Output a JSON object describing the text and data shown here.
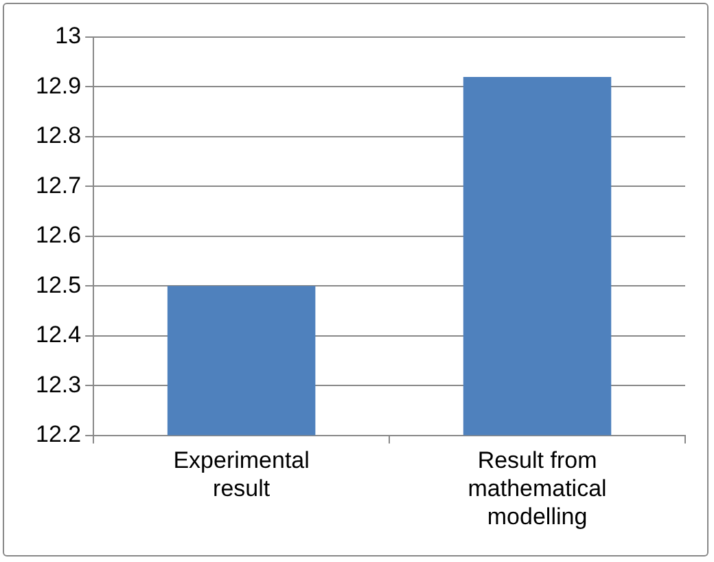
{
  "chart_data": {
    "type": "bar",
    "categories": [
      "Experimental result",
      "Result from mathematical modelling"
    ],
    "values": [
      12.5,
      12.92
    ],
    "color": "#4f81bd",
    "ylim": [
      12.2,
      13
    ],
    "yticks": [
      12.2,
      12.3,
      12.4,
      12.5,
      12.6,
      12.7,
      12.8,
      12.9,
      13
    ],
    "grid": "y",
    "legend": false
  }
}
